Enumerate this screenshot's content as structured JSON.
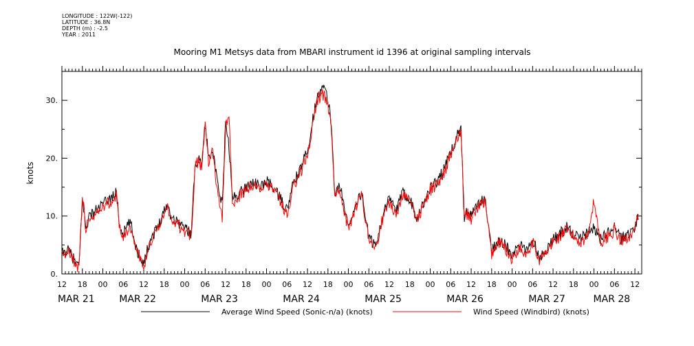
{
  "meta": {
    "longitude": "LONGITUDE : 122W(-122)",
    "latitude": "LATITUDE : 36.8N",
    "depth": "DEPTH (m) : -2.5",
    "year": "YEAR : 2011"
  },
  "chart_data": {
    "type": "line",
    "title": "Mooring M1 Metsys data from MBARI instrument id 1396 at original sampling intervals",
    "xlabel": "",
    "ylabel": "knots",
    "ylim": [
      0,
      35
    ],
    "xlim_hours": [
      0,
      170
    ],
    "y_ticks": [
      {
        "value": 0,
        "label": "0."
      },
      {
        "value": 10,
        "label": "10."
      },
      {
        "value": 20,
        "label": "20."
      },
      {
        "value": 30,
        "label": "30."
      }
    ],
    "x_ticks": [
      "12",
      "18",
      "00",
      "06",
      "12",
      "18",
      "00",
      "06",
      "12",
      "18",
      "00",
      "06",
      "12",
      "18",
      "00",
      "06",
      "12",
      "18",
      "00",
      "06",
      "12",
      "18",
      "00",
      "06",
      "12",
      "18",
      "00",
      "06",
      "12"
    ],
    "x_day_labels": [
      {
        "label": "MAR 21",
        "hour": 0
      },
      {
        "label": "MAR 22",
        "hour": 18
      },
      {
        "label": "MAR 23",
        "hour": 42
      },
      {
        "label": "MAR 24",
        "hour": 66
      },
      {
        "label": "MAR 25",
        "hour": 90
      },
      {
        "label": "MAR 26",
        "hour": 114
      },
      {
        "label": "MAR 27",
        "hour": 138
      },
      {
        "label": "MAR 28",
        "hour": 157
      }
    ],
    "grid": false,
    "legend_position": "bottom",
    "series": [
      {
        "name": "Average Wind Speed (Sonic-n/a) (knots)",
        "color": "#000000",
        "x": [
          0,
          2,
          4,
          5,
          6,
          7,
          8,
          10,
          12,
          14,
          16,
          17,
          18,
          20,
          22,
          24,
          26,
          28,
          30,
          31,
          32,
          34,
          36,
          38,
          39,
          40,
          41,
          42,
          43,
          44,
          46,
          47,
          48,
          49,
          50,
          52,
          54,
          56,
          58,
          60,
          62,
          64,
          66,
          68,
          70,
          71,
          72,
          73,
          74,
          75,
          76,
          77,
          78,
          79,
          80,
          81,
          82,
          84,
          86,
          88,
          90,
          92,
          94,
          96,
          98,
          100,
          102,
          104,
          106,
          108,
          110,
          112,
          114,
          116,
          117,
          118,
          119,
          120,
          122,
          124,
          126,
          128,
          130,
          132,
          134,
          136,
          138,
          140,
          142,
          144,
          146,
          148,
          150,
          152,
          154,
          156,
          158,
          160,
          162,
          164,
          166,
          168,
          169
        ],
        "y": [
          3.5,
          4,
          2,
          1,
          13,
          8,
          10,
          11,
          12,
          13,
          14,
          8,
          7,
          9,
          4,
          2,
          6,
          8,
          11,
          12,
          10,
          9,
          8,
          7,
          19,
          20,
          19,
          26,
          20,
          22,
          14,
          12,
          26,
          22,
          13,
          14,
          15,
          16,
          15,
          16,
          15,
          13,
          11,
          16,
          18,
          20,
          21,
          25,
          28,
          31,
          32,
          32,
          30,
          26,
          14,
          15,
          14,
          8,
          12,
          14,
          6,
          5,
          10,
          13,
          11,
          14,
          13,
          10,
          12,
          15,
          16,
          18,
          21,
          24,
          25,
          10,
          11,
          10,
          12,
          13,
          4,
          6,
          5,
          3,
          5,
          4,
          6,
          3,
          4,
          6,
          7,
          8,
          7,
          6,
          7,
          8,
          6,
          7,
          8,
          6,
          7,
          8,
          10
        ],
        "noise": 1.0
      },
      {
        "name": "Wind Speed (Windbird) (knots)",
        "color": "#ff0000",
        "x": [
          0,
          2,
          4,
          5,
          6,
          7,
          8,
          10,
          12,
          14,
          16,
          17,
          18,
          20,
          22,
          24,
          26,
          28,
          30,
          31,
          32,
          34,
          36,
          38,
          39,
          40,
          41,
          42,
          43,
          44,
          46,
          47,
          48,
          49,
          50,
          52,
          54,
          56,
          58,
          60,
          62,
          64,
          66,
          68,
          70,
          71,
          72,
          73,
          74,
          75,
          76,
          77,
          78,
          79,
          80,
          81,
          82,
          84,
          86,
          88,
          90,
          92,
          94,
          96,
          98,
          100,
          102,
          104,
          106,
          108,
          110,
          112,
          114,
          116,
          117,
          118,
          119,
          120,
          122,
          124,
          126,
          128,
          130,
          132,
          134,
          136,
          138,
          140,
          142,
          144,
          146,
          148,
          150,
          152,
          154,
          156,
          158,
          160,
          162,
          164,
          166,
          168,
          169
        ],
        "y": [
          3.2,
          3.8,
          1.8,
          0.8,
          14,
          7.5,
          9.5,
          10.5,
          11.5,
          12.5,
          13.5,
          7.5,
          6.5,
          8.5,
          3.5,
          1.5,
          5.5,
          7.5,
          10.5,
          11.5,
          9.5,
          8.5,
          7.5,
          6.5,
          18.5,
          19.5,
          18.5,
          25.5,
          19.5,
          21.5,
          13,
          10,
          25,
          28,
          12,
          13.5,
          14.5,
          15.5,
          14.5,
          15.5,
          14.5,
          12.5,
          10.5,
          15.5,
          17.5,
          19.5,
          20.5,
          24,
          27,
          30,
          31,
          31,
          29,
          25,
          13.5,
          14.5,
          13.5,
          7.5,
          11.5,
          13.5,
          5.5,
          4.5,
          9.5,
          12.5,
          10.5,
          13.5,
          12.5,
          9.5,
          11.5,
          14.5,
          15.5,
          17.5,
          20.5,
          23.5,
          24,
          9.5,
          10.5,
          9.5,
          11.5,
          12.5,
          3.5,
          5.5,
          4.5,
          2.5,
          4.5,
          3.5,
          5.5,
          2.5,
          3.5,
          5.5,
          6.5,
          7.5,
          6.5,
          5.5,
          6.5,
          12.5,
          5.5,
          6.5,
          7.5,
          5.5,
          6.5,
          7.5,
          10
        ],
        "noise": 1.1
      }
    ]
  }
}
